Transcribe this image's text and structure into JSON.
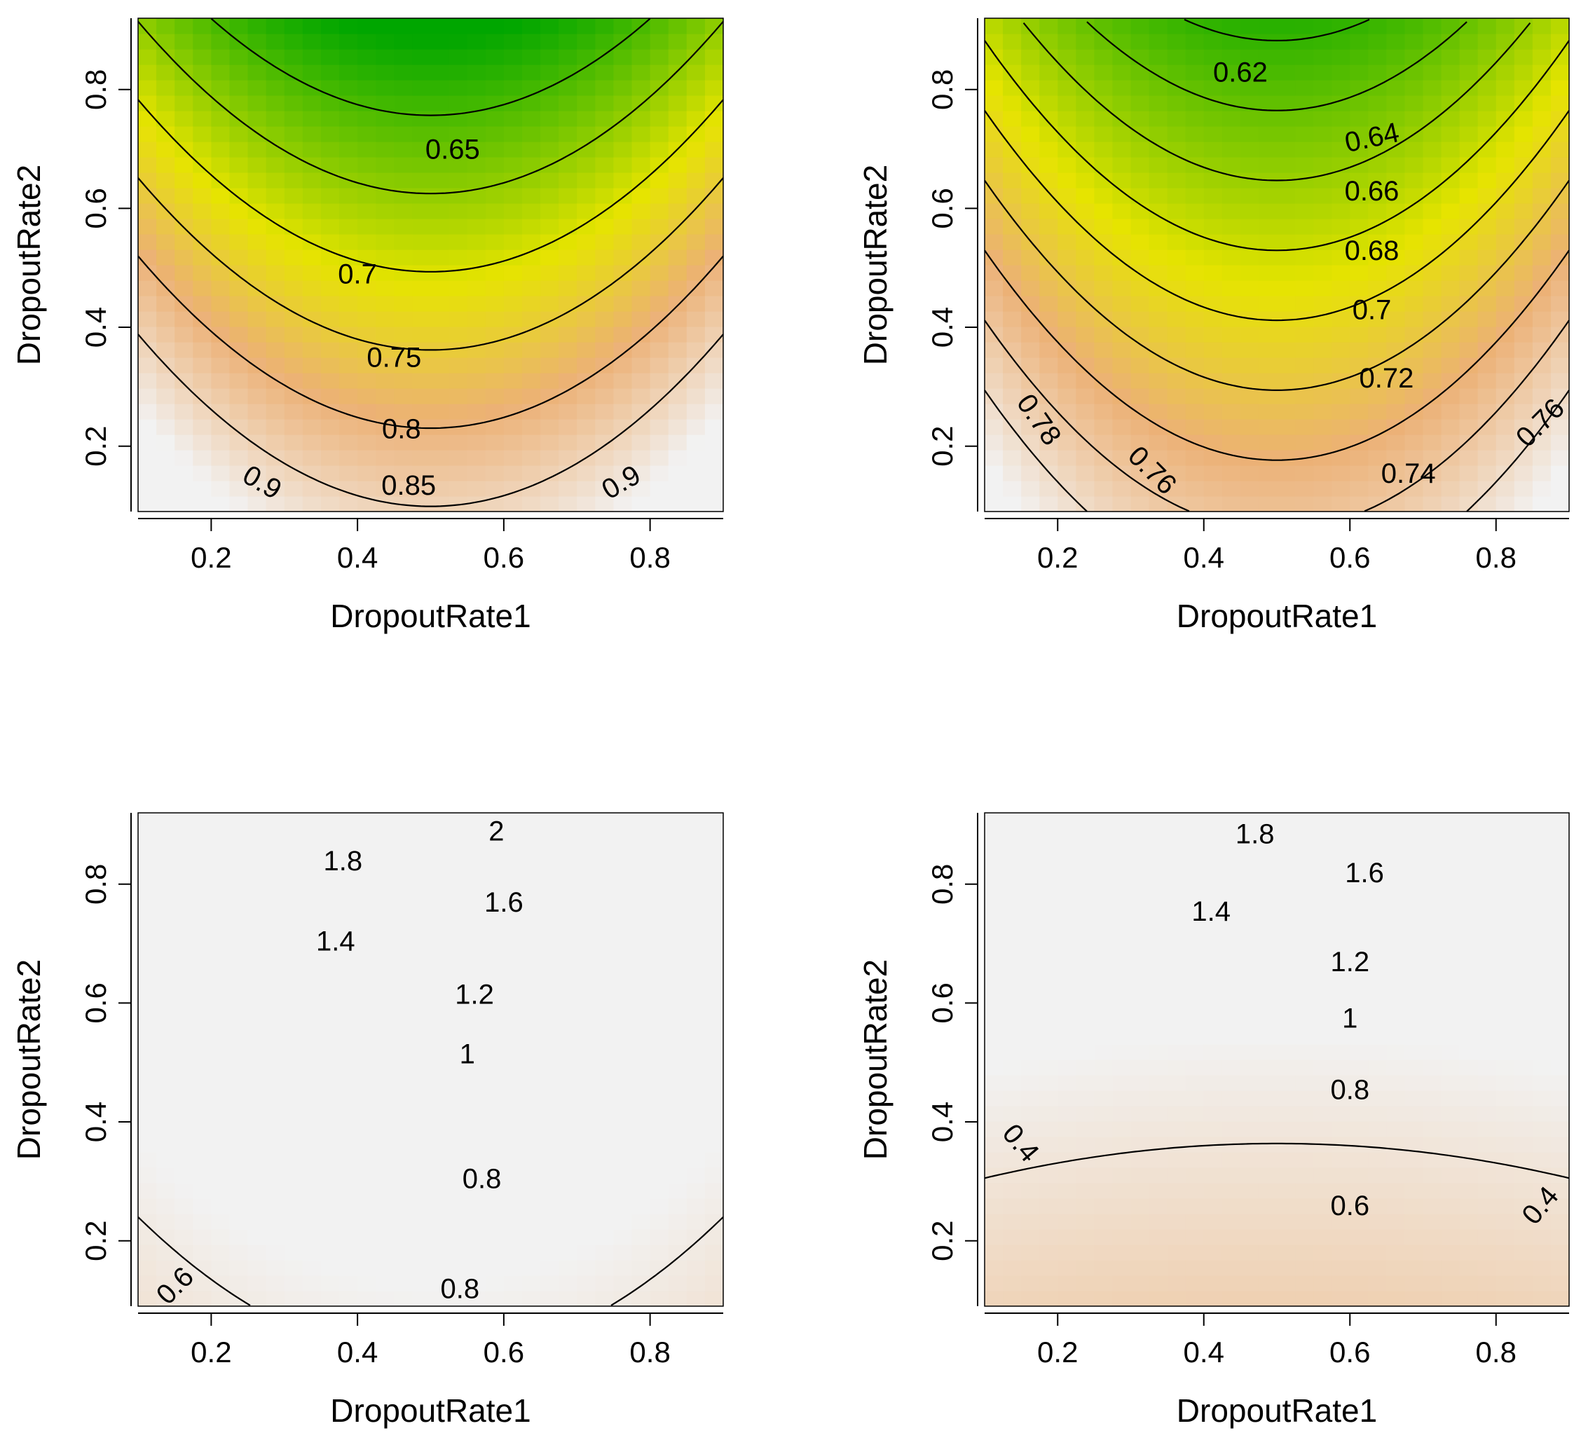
{
  "chart_data": [
    {
      "type": "heatmap",
      "panel": "top-left",
      "xlabel": "DropoutRate1",
      "ylabel": "DropoutRate2",
      "xlim": [
        0.1,
        0.9
      ],
      "ylim": [
        0.09,
        0.92
      ],
      "xticks": [
        "0.2",
        "0.4",
        "0.6",
        "0.8"
      ],
      "yticks": [
        "0.2",
        "0.4",
        "0.6",
        "0.8"
      ],
      "surface": {
        "z_min": 0.6,
        "z_max": 0.95,
        "center_x": 0.5,
        "a": 0.6875,
        "b": -0.38,
        "c": 0.9375
      },
      "contour_levels": [
        "0.65",
        "0.7",
        "0.75",
        "0.8",
        "0.85",
        "0.9"
      ],
      "contour_labels": [
        {
          "text": "0.65",
          "x": 0.53,
          "y": 0.7,
          "angle": 0
        },
        {
          "text": "0.7",
          "x": 0.4,
          "y": 0.49,
          "angle": 0
        },
        {
          "text": "0.75",
          "x": 0.45,
          "y": 0.35,
          "angle": 0
        },
        {
          "text": "0.8",
          "x": 0.46,
          "y": 0.23,
          "angle": 0
        },
        {
          "text": "0.85",
          "x": 0.47,
          "y": 0.135,
          "angle": 0
        },
        {
          "text": "0.9",
          "x": 0.27,
          "y": 0.14,
          "angle": 30
        },
        {
          "text": "0.9",
          "x": 0.76,
          "y": 0.14,
          "angle": -30
        }
      ]
    },
    {
      "type": "heatmap",
      "panel": "top-right",
      "xlabel": "DropoutRate1",
      "ylabel": "DropoutRate2",
      "xlim": [
        0.1,
        0.9
      ],
      "ylim": [
        0.09,
        0.92
      ],
      "xticks": [
        "0.2",
        "0.4",
        "0.6",
        "0.8"
      ],
      "yticks": [
        "0.2",
        "0.4",
        "0.6",
        "0.8"
      ],
      "surface": {
        "z_min": 0.6,
        "z_max": 0.8,
        "center_x": 0.5,
        "a": 0.375,
        "b": -0.17,
        "c": 0.77
      },
      "contour_levels": [
        "0.62",
        "0.64",
        "0.66",
        "0.68",
        "0.7",
        "0.72",
        "0.74",
        "0.76",
        "0.78"
      ],
      "contour_labels": [
        {
          "text": "0.62",
          "x": 0.45,
          "y": 0.83,
          "angle": 0
        },
        {
          "text": "0.64",
          "x": 0.63,
          "y": 0.72,
          "angle": -12
        },
        {
          "text": "0.66",
          "x": 0.63,
          "y": 0.63,
          "angle": 0
        },
        {
          "text": "0.68",
          "x": 0.63,
          "y": 0.53,
          "angle": 0
        },
        {
          "text": "0.7",
          "x": 0.63,
          "y": 0.43,
          "angle": 0
        },
        {
          "text": "0.72",
          "x": 0.65,
          "y": 0.315,
          "angle": 0
        },
        {
          "text": "0.74",
          "x": 0.68,
          "y": 0.155,
          "angle": 0
        },
        {
          "text": "0.76",
          "x": 0.33,
          "y": 0.16,
          "angle": 45
        },
        {
          "text": "0.78",
          "x": 0.175,
          "y": 0.245,
          "angle": 55
        },
        {
          "text": "0.76",
          "x": 0.86,
          "y": 0.24,
          "angle": -45
        }
      ]
    },
    {
      "type": "heatmap",
      "panel": "bottom-left",
      "xlabel": "DropoutRate1",
      "ylabel": "DropoutRate2",
      "xlim": [
        0.1,
        0.9
      ],
      "ylim": [
        0.09,
        0.92
      ],
      "xticks": [
        "0.2",
        "0.4",
        "0.6",
        "0.8"
      ],
      "yticks": [
        "0.2",
        "0.4",
        "0.6",
        "0.8"
      ],
      "surface": {
        "z_min": 0.55,
        "z_max": 2.05,
        "center_x": 0.5,
        "a": -0.6,
        "b": 0.4,
        "c": 2.0
      },
      "contour_levels": [
        "2",
        "1.8",
        "1.6",
        "1.4",
        "1.2",
        "1",
        "0.8",
        "0.6"
      ],
      "contour_labels": [
        {
          "text": "2",
          "x": 0.59,
          "y": 0.89,
          "angle": 0
        },
        {
          "text": "1.8",
          "x": 0.38,
          "y": 0.84,
          "angle": 0
        },
        {
          "text": "1.6",
          "x": 0.6,
          "y": 0.77,
          "angle": 0
        },
        {
          "text": "1.4",
          "x": 0.37,
          "y": 0.705,
          "angle": 0
        },
        {
          "text": "1.2",
          "x": 0.56,
          "y": 0.615,
          "angle": 0
        },
        {
          "text": "1",
          "x": 0.55,
          "y": 0.515,
          "angle": 0
        },
        {
          "text": "0.8",
          "x": 0.57,
          "y": 0.305,
          "angle": 0
        },
        {
          "text": "0.8",
          "x": 0.54,
          "y": 0.12,
          "angle": 0
        },
        {
          "text": "0.6",
          "x": 0.15,
          "y": 0.125,
          "angle": -45
        }
      ]
    },
    {
      "type": "heatmap",
      "panel": "bottom-right",
      "xlabel": "DropoutRate1",
      "ylabel": "DropoutRate2",
      "xlim": [
        0.1,
        0.9
      ],
      "ylim": [
        0.09,
        0.92
      ],
      "xticks": [
        "0.2",
        "0.4",
        "0.6",
        "0.8"
      ],
      "yticks": [
        "0.2",
        "0.4",
        "0.6",
        "0.8"
      ],
      "surface": {
        "z_min": 0.3,
        "z_max": 1.9,
        "center_x": 0.5,
        "a": 0.2,
        "b": 0.55,
        "c": 1.6
      },
      "contour_levels": [
        "1.8",
        "1.6",
        "1.4",
        "1.2",
        "1",
        "0.8",
        "0.6",
        "0.4"
      ],
      "contour_labels": [
        {
          "text": "1.8",
          "x": 0.47,
          "y": 0.885,
          "angle": 0
        },
        {
          "text": "1.6",
          "x": 0.62,
          "y": 0.82,
          "angle": 0
        },
        {
          "text": "1.4",
          "x": 0.41,
          "y": 0.755,
          "angle": 0
        },
        {
          "text": "1.2",
          "x": 0.6,
          "y": 0.67,
          "angle": 0
        },
        {
          "text": "1",
          "x": 0.6,
          "y": 0.575,
          "angle": 0
        },
        {
          "text": "0.8",
          "x": 0.6,
          "y": 0.455,
          "angle": 0
        },
        {
          "text": "0.6",
          "x": 0.6,
          "y": 0.26,
          "angle": 0
        },
        {
          "text": "0.4",
          "x": 0.15,
          "y": 0.365,
          "angle": 50
        },
        {
          "text": "0.4",
          "x": 0.86,
          "y": 0.26,
          "angle": -50
        }
      ]
    }
  ]
}
